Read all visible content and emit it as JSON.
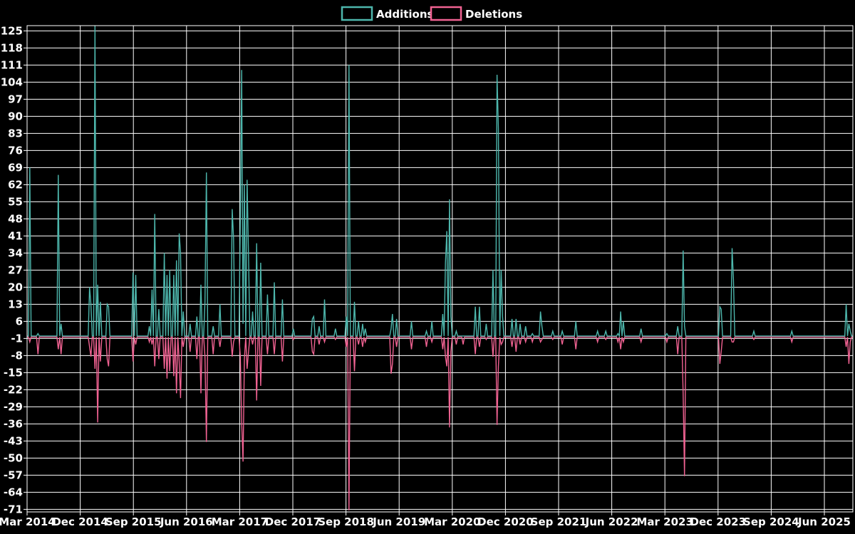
{
  "legend": {
    "additions_label": "Additions",
    "deletions_label": "Deletions"
  },
  "colors": {
    "background": "#000000",
    "grid": "#ffffff",
    "text": "#ffffff",
    "additions": "#4db6ac",
    "deletions": "#f06292"
  },
  "chart_data": {
    "type": "line",
    "title": "",
    "xlabel": "",
    "ylabel": "",
    "legend_position": "top-center",
    "grid": true,
    "x_unit": "week (each data point = 1 week starting Mar 2014)",
    "weeks_total": 609,
    "weeks_per_x_tick": 39.13,
    "x_tick_labels": [
      "Mar 2014",
      "Dec 2014",
      "Sep 2015",
      "Jun 2016",
      "Mar 2017",
      "Dec 2017",
      "Sep 2018",
      "Jun 2019",
      "Mar 2020",
      "Dec 2020",
      "Sep 2021",
      "Jun 2022",
      "Mar 2023",
      "Dec 2023",
      "Sep 2024",
      "Jun 2025"
    ],
    "y_ticks": [
      125,
      118,
      111,
      104,
      97,
      90,
      83,
      76,
      69,
      62,
      55,
      48,
      41,
      34,
      27,
      20,
      13,
      6,
      -1,
      -8,
      -15,
      -22,
      -29,
      -36,
      -43,
      -50,
      -57,
      -64,
      -71
    ],
    "ylim": [
      -72,
      127.2
    ],
    "baseline": 0,
    "series": [
      {
        "name": "Additions",
        "color": "#4db6ac",
        "sign": 1,
        "note": "weekly lines added; weeks not listed are 0",
        "events": [
          [
            2,
            69
          ],
          [
            8,
            1
          ],
          [
            23,
            66
          ],
          [
            25,
            5
          ],
          [
            46,
            20
          ],
          [
            47,
            13
          ],
          [
            50,
            127
          ],
          [
            52,
            21
          ],
          [
            54,
            14
          ],
          [
            59,
            13
          ],
          [
            60,
            12
          ],
          [
            78,
            26
          ],
          [
            80,
            25
          ],
          [
            90,
            4
          ],
          [
            92,
            19
          ],
          [
            94,
            50
          ],
          [
            97,
            11
          ],
          [
            101,
            34
          ],
          [
            103,
            25
          ],
          [
            105,
            27
          ],
          [
            108,
            25
          ],
          [
            110,
            31
          ],
          [
            112,
            42
          ],
          [
            113,
            34
          ],
          [
            115,
            10
          ],
          [
            120,
            5
          ],
          [
            125,
            8
          ],
          [
            128,
            21
          ],
          [
            131,
            14
          ],
          [
            132,
            67
          ],
          [
            137,
            4
          ],
          [
            142,
            13
          ],
          [
            151,
            52
          ],
          [
            152,
            40
          ],
          [
            157,
            47
          ],
          [
            158,
            109
          ],
          [
            159,
            5
          ],
          [
            160,
            62
          ],
          [
            162,
            64
          ],
          [
            163,
            33
          ],
          [
            166,
            10
          ],
          [
            169,
            38
          ],
          [
            172,
            30
          ],
          [
            177,
            17
          ],
          [
            182,
            22
          ],
          [
            188,
            15
          ],
          [
            196,
            3
          ],
          [
            210,
            7
          ],
          [
            211,
            8
          ],
          [
            215,
            4
          ],
          [
            219,
            15
          ],
          [
            227,
            3
          ],
          [
            235,
            8
          ],
          [
            237,
            111
          ],
          [
            241,
            14
          ],
          [
            244,
            6
          ],
          [
            247,
            5
          ],
          [
            249,
            3
          ],
          [
            268,
            3
          ],
          [
            269,
            9
          ],
          [
            272,
            7
          ],
          [
            283,
            6
          ],
          [
            294,
            2
          ],
          [
            298,
            6
          ],
          [
            306,
            9
          ],
          [
            308,
            30
          ],
          [
            309,
            43
          ],
          [
            311,
            56
          ],
          [
            312,
            8
          ],
          [
            316,
            2
          ],
          [
            330,
            12
          ],
          [
            333,
            12
          ],
          [
            338,
            5
          ],
          [
            343,
            27
          ],
          [
            346,
            107
          ],
          [
            347,
            85
          ],
          [
            349,
            27
          ],
          [
            350,
            8
          ],
          [
            357,
            7
          ],
          [
            360,
            7
          ],
          [
            363,
            5
          ],
          [
            367,
            4
          ],
          [
            372,
            1
          ],
          [
            378,
            10
          ],
          [
            379,
            4
          ],
          [
            387,
            2
          ],
          [
            394,
            2
          ],
          [
            404,
            6
          ],
          [
            420,
            2
          ],
          [
            426,
            2
          ],
          [
            435,
            1
          ],
          [
            437,
            10
          ],
          [
            439,
            6
          ],
          [
            452,
            3
          ],
          [
            471,
            1
          ],
          [
            479,
            4
          ],
          [
            483,
            35
          ],
          [
            484,
            4
          ],
          [
            510,
            12
          ],
          [
            511,
            11
          ],
          [
            519,
            36
          ],
          [
            520,
            23
          ],
          [
            535,
            2
          ],
          [
            563,
            2
          ],
          [
            603,
            13
          ],
          [
            605,
            5
          ],
          [
            606,
            2
          ]
        ]
      },
      {
        "name": "Deletions",
        "color": "#f06292",
        "sign": -1,
        "note": "weekly lines deleted, plotted negative; weeks not listed are 0",
        "events": [
          [
            2,
            2
          ],
          [
            8,
            7
          ],
          [
            23,
            5
          ],
          [
            25,
            7
          ],
          [
            46,
            4
          ],
          [
            47,
            8
          ],
          [
            50,
            13
          ],
          [
            52,
            35
          ],
          [
            54,
            10
          ],
          [
            59,
            9
          ],
          [
            60,
            12
          ],
          [
            78,
            10
          ],
          [
            80,
            3
          ],
          [
            90,
            2
          ],
          [
            92,
            3
          ],
          [
            94,
            12
          ],
          [
            97,
            9
          ],
          [
            101,
            13
          ],
          [
            103,
            17
          ],
          [
            105,
            14
          ],
          [
            108,
            16
          ],
          [
            110,
            23
          ],
          [
            112,
            10
          ],
          [
            113,
            25
          ],
          [
            115,
            4
          ],
          [
            120,
            6
          ],
          [
            125,
            9
          ],
          [
            128,
            23
          ],
          [
            131,
            8
          ],
          [
            132,
            43
          ],
          [
            137,
            7
          ],
          [
            142,
            4
          ],
          [
            151,
            8
          ],
          [
            152,
            2
          ],
          [
            157,
            8
          ],
          [
            158,
            35
          ],
          [
            159,
            51
          ],
          [
            160,
            9
          ],
          [
            162,
            13
          ],
          [
            163,
            6
          ],
          [
            166,
            3
          ],
          [
            169,
            26
          ],
          [
            172,
            20
          ],
          [
            177,
            7
          ],
          [
            182,
            7
          ],
          [
            188,
            10
          ],
          [
            196,
            1
          ],
          [
            210,
            6
          ],
          [
            211,
            7
          ],
          [
            215,
            3
          ],
          [
            219,
            2
          ],
          [
            227,
            1
          ],
          [
            235,
            4
          ],
          [
            237,
            71
          ],
          [
            241,
            14
          ],
          [
            244,
            3
          ],
          [
            247,
            4
          ],
          [
            249,
            2
          ],
          [
            268,
            15
          ],
          [
            269,
            11
          ],
          [
            272,
            4
          ],
          [
            283,
            5
          ],
          [
            294,
            4
          ],
          [
            298,
            2
          ],
          [
            306,
            5
          ],
          [
            308,
            8
          ],
          [
            309,
            12
          ],
          [
            311,
            37
          ],
          [
            312,
            6
          ],
          [
            316,
            3
          ],
          [
            321,
            3
          ],
          [
            330,
            7
          ],
          [
            333,
            4
          ],
          [
            338,
            1
          ],
          [
            343,
            8
          ],
          [
            346,
            36
          ],
          [
            347,
            12
          ],
          [
            349,
            3
          ],
          [
            350,
            2
          ],
          [
            357,
            4
          ],
          [
            360,
            6
          ],
          [
            363,
            3
          ],
          [
            367,
            2
          ],
          [
            372,
            2
          ],
          [
            378,
            2
          ],
          [
            379,
            1
          ],
          [
            387,
            1
          ],
          [
            394,
            3
          ],
          [
            404,
            5
          ],
          [
            420,
            2
          ],
          [
            426,
            1
          ],
          [
            435,
            2
          ],
          [
            437,
            5
          ],
          [
            439,
            2
          ],
          [
            452,
            2
          ],
          [
            471,
            2
          ],
          [
            479,
            7
          ],
          [
            483,
            23
          ],
          [
            484,
            57
          ],
          [
            510,
            11
          ],
          [
            511,
            6
          ],
          [
            519,
            2
          ],
          [
            520,
            2
          ],
          [
            535,
            1
          ],
          [
            563,
            2
          ],
          [
            603,
            4
          ],
          [
            605,
            11
          ],
          [
            606,
            2
          ]
        ]
      }
    ]
  }
}
